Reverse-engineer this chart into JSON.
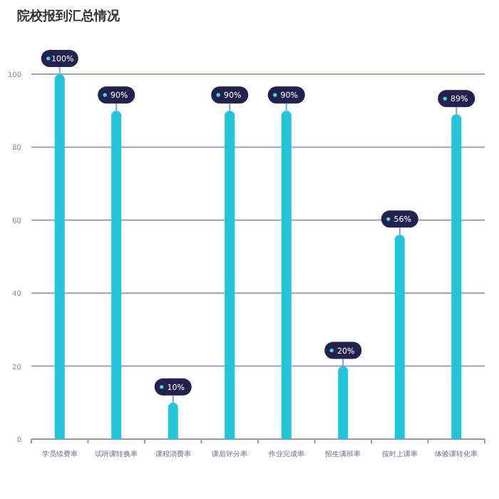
{
  "chart_data": {
    "type": "bar",
    "title": "院校报到汇总情况",
    "categories": [
      "学员续费率",
      "试听课转换率",
      "课程消费率",
      "课后评分率",
      "作业完成率",
      "招生满班率",
      "按时上课率",
      "体验课转化率"
    ],
    "values": [
      100,
      90,
      10,
      90,
      90,
      20,
      56,
      89
    ],
    "value_labels": [
      "100%",
      "90%",
      "10%",
      "90%",
      "90%",
      "20%",
      "56%",
      "89%"
    ],
    "color": "#22c4da",
    "ylim": [
      0,
      100
    ],
    "yticks": [
      0,
      20,
      40,
      60,
      80,
      100
    ],
    "grid": "y"
  }
}
